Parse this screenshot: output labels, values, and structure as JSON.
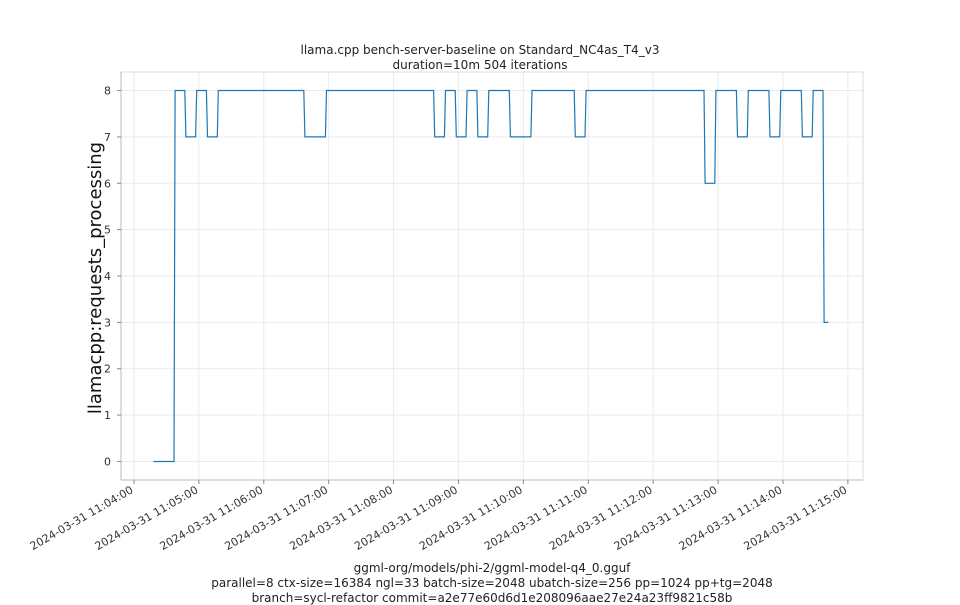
{
  "chart_data": {
    "type": "line",
    "title": "llama.cpp bench-server-baseline on Standard_NC4as_T4_v3",
    "subtitle": "duration=10m 504 iterations",
    "ylabel": "llamacpp:requests_processing",
    "xlabel_lines": [
      "ggml-org/models/phi-2/ggml-model-q4_0.gguf",
      "parallel=8 ctx-size=16384 ngl=33 batch-size=2048 ubatch-size=256 pp=1024 pp+tg=2048",
      "branch=sycl-refactor commit=a2e77e60d6d1e208096aae27e24a23ff9821c58b"
    ],
    "x_ticks": [
      "2024-03-31 11:04:00",
      "2024-03-31 11:05:00",
      "2024-03-31 11:06:00",
      "2024-03-31 11:07:00",
      "2024-03-31 11:08:00",
      "2024-03-31 11:09:00",
      "2024-03-31 11:10:00",
      "2024-03-31 11:11:00",
      "2024-03-31 11:12:00",
      "2024-03-31 11:13:00",
      "2024-03-31 11:14:00",
      "2024-03-31 11:15:00"
    ],
    "y_ticks": [
      0,
      1,
      2,
      3,
      4,
      5,
      6,
      7,
      8
    ],
    "xlim": [
      "2024-03-31 11:03:48",
      "2024-03-31 11:15:14"
    ],
    "ylim": [
      -0.4,
      8.4
    ],
    "grid": true,
    "series": [
      {
        "color": "#1f77b4",
        "x": [
          "2024-03-31 11:04:18",
          "2024-03-31 11:04:37",
          "2024-03-31 11:04:38",
          "2024-03-31 11:04:47",
          "2024-03-31 11:04:48",
          "2024-03-31 11:04:57",
          "2024-03-31 11:04:58",
          "2024-03-31 11:05:07",
          "2024-03-31 11:05:08",
          "2024-03-31 11:05:17",
          "2024-03-31 11:05:18",
          "2024-03-31 11:06:37",
          "2024-03-31 11:06:38",
          "2024-03-31 11:06:57",
          "2024-03-31 11:06:58",
          "2024-03-31 11:08:37",
          "2024-03-31 11:08:38",
          "2024-03-31 11:08:47",
          "2024-03-31 11:08:48",
          "2024-03-31 11:08:57",
          "2024-03-31 11:08:58",
          "2024-03-31 11:09:07",
          "2024-03-31 11:09:08",
          "2024-03-31 11:09:17",
          "2024-03-31 11:09:18",
          "2024-03-31 11:09:27",
          "2024-03-31 11:09:28",
          "2024-03-31 11:09:47",
          "2024-03-31 11:09:48",
          "2024-03-31 11:10:07",
          "2024-03-31 11:10:08",
          "2024-03-31 11:10:47",
          "2024-03-31 11:10:48",
          "2024-03-31 11:10:57",
          "2024-03-31 11:10:58",
          "2024-03-31 11:12:47",
          "2024-03-31 11:12:48",
          "2024-03-31 11:12:57",
          "2024-03-31 11:12:58",
          "2024-03-31 11:13:17",
          "2024-03-31 11:13:18",
          "2024-03-31 11:13:27",
          "2024-03-31 11:13:28",
          "2024-03-31 11:13:47",
          "2024-03-31 11:13:48",
          "2024-03-31 11:13:57",
          "2024-03-31 11:13:58",
          "2024-03-31 11:14:17",
          "2024-03-31 11:14:18",
          "2024-03-31 11:14:27",
          "2024-03-31 11:14:28",
          "2024-03-31 11:14:37",
          "2024-03-31 11:14:38",
          "2024-03-31 11:14:42"
        ],
        "y": [
          0,
          0,
          8,
          8,
          7,
          7,
          8,
          8,
          7,
          7,
          8,
          8,
          7,
          7,
          8,
          8,
          7,
          7,
          8,
          8,
          7,
          7,
          8,
          8,
          7,
          7,
          8,
          8,
          7,
          7,
          8,
          8,
          7,
          7,
          8,
          8,
          6,
          6,
          8,
          8,
          7,
          7,
          8,
          8,
          7,
          7,
          8,
          8,
          7,
          7,
          8,
          8,
          3,
          3
        ]
      }
    ]
  }
}
